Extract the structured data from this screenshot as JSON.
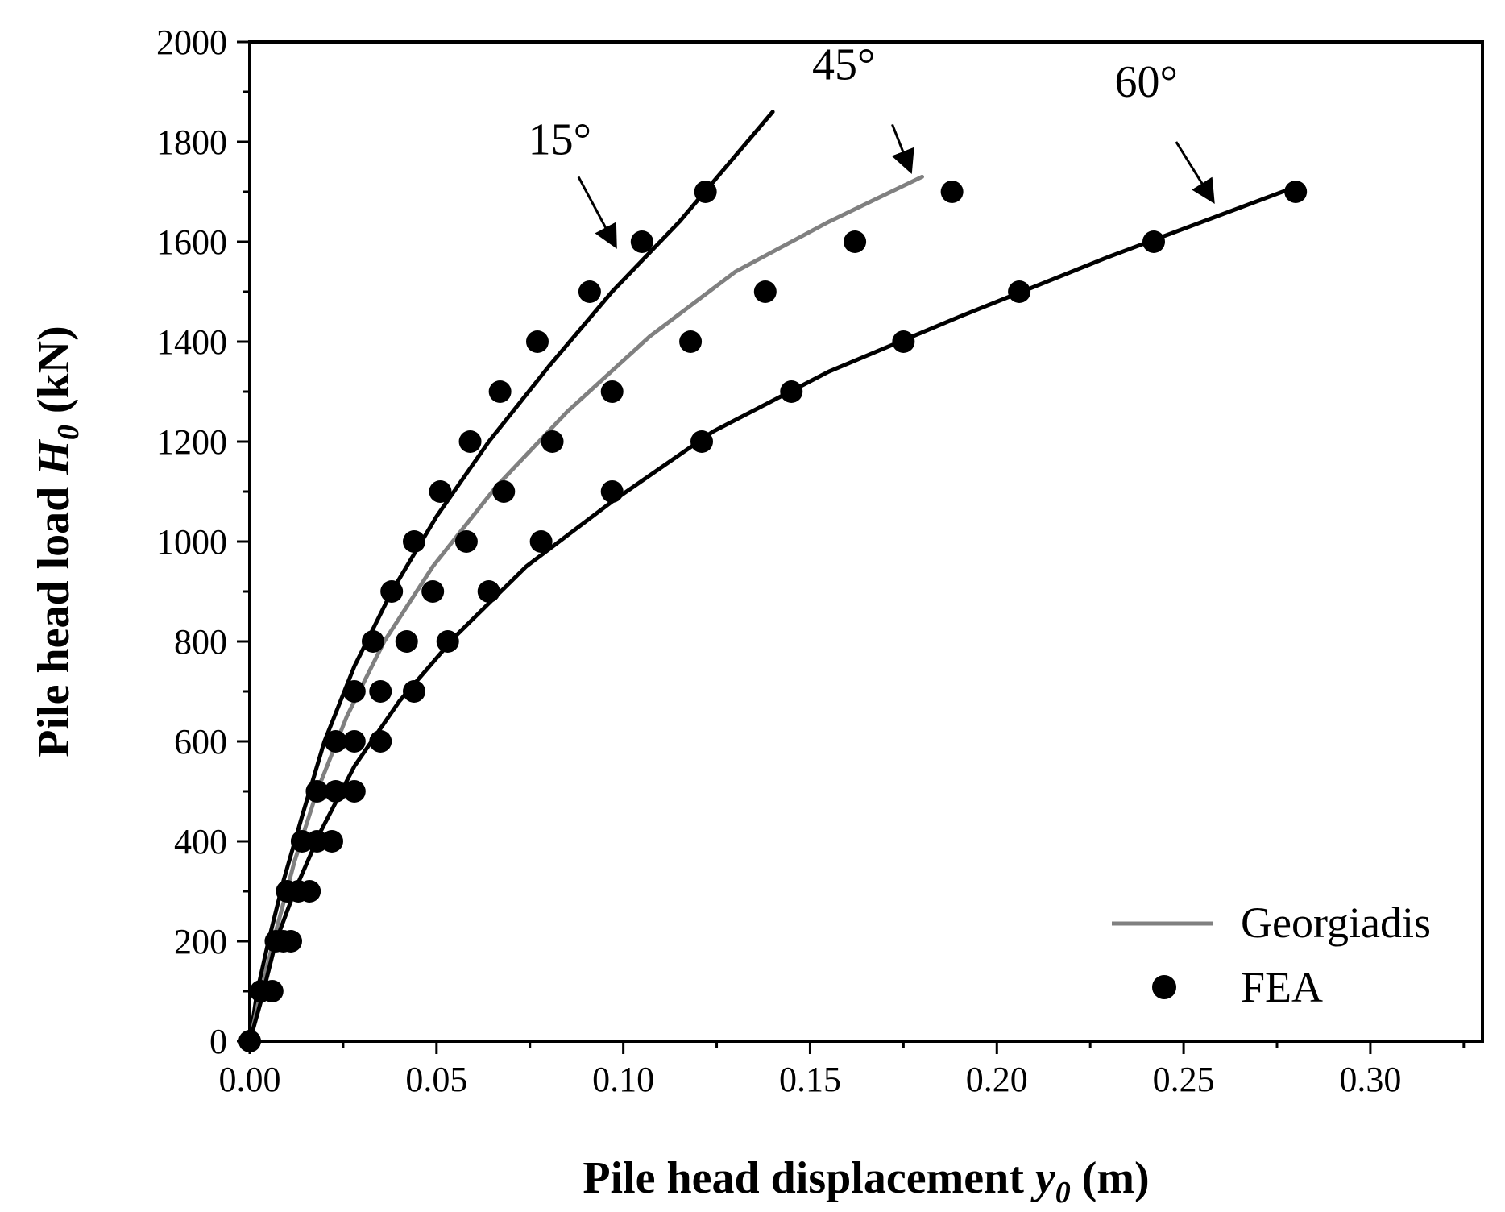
{
  "chart_data": {
    "type": "scatter",
    "title": "",
    "xlabel": {
      "main": "Pile head displacement ",
      "var": "y",
      "sub": "0",
      "unit": " (m)"
    },
    "ylabel": {
      "main": "Pile head load ",
      "var": "H",
      "sub": "0",
      "unit": " (kN)"
    },
    "xlim": [
      0,
      0.33
    ],
    "ylim": [
      0,
      2000
    ],
    "xticks": [
      0.0,
      0.05,
      0.1,
      0.15,
      0.2,
      0.25,
      0.3
    ],
    "xtick_labels": [
      "0.00",
      "0.05",
      "0.10",
      "0.15",
      "0.20",
      "0.25",
      "0.30"
    ],
    "yticks": [
      0,
      200,
      400,
      600,
      800,
      1000,
      1200,
      1400,
      1600,
      1800,
      2000
    ],
    "ytick_labels": [
      "0",
      "200",
      "400",
      "600",
      "800",
      "1000",
      "1200",
      "1400",
      "1600",
      "1800",
      "2000"
    ],
    "legend": {
      "position": "bottom-right",
      "entries": [
        {
          "label": "Georgiadis",
          "kind": "line",
          "color": "#808080"
        },
        {
          "label": "FEA",
          "kind": "marker",
          "color": "#000000"
        }
      ]
    },
    "series": [
      {
        "name": "Georgiadis 15°",
        "kind": "line",
        "color": "#000000",
        "x": [
          0,
          0.002,
          0.005,
          0.009,
          0.014,
          0.02,
          0.028,
          0.038,
          0.05,
          0.064,
          0.08,
          0.097,
          0.115,
          0.14
        ],
        "y": [
          0,
          100,
          200,
          320,
          450,
          600,
          750,
          900,
          1050,
          1200,
          1350,
          1500,
          1640,
          1860
        ]
      },
      {
        "name": "Georgiadis 45°",
        "kind": "line",
        "color": "#808080",
        "x": [
          0,
          0.003,
          0.007,
          0.012,
          0.018,
          0.026,
          0.036,
          0.049,
          0.066,
          0.085,
          0.107,
          0.13,
          0.155,
          0.18
        ],
        "y": [
          0,
          100,
          220,
          360,
          500,
          650,
          800,
          950,
          1110,
          1260,
          1410,
          1540,
          1640,
          1730
        ]
      },
      {
        "name": "Georgiadis 60°",
        "kind": "line",
        "color": "#000000",
        "x": [
          0,
          0.003,
          0.007,
          0.012,
          0.019,
          0.028,
          0.04,
          0.055,
          0.074,
          0.097,
          0.124,
          0.155,
          0.19,
          0.23,
          0.28
        ],
        "y": [
          0,
          80,
          200,
          300,
          420,
          550,
          680,
          810,
          950,
          1080,
          1220,
          1340,
          1450,
          1570,
          1710
        ]
      },
      {
        "name": "FEA 15°",
        "kind": "scatter",
        "color": "#000000",
        "x": [
          0.0,
          0.003,
          0.007,
          0.01,
          0.014,
          0.018,
          0.023,
          0.028,
          0.033,
          0.038,
          0.044,
          0.051,
          0.059,
          0.067,
          0.077,
          0.091,
          0.105,
          0.122
        ],
        "y": [
          0,
          100,
          200,
          300,
          400,
          500,
          600,
          700,
          800,
          900,
          1000,
          1100,
          1200,
          1300,
          1400,
          1500,
          1600,
          1700
        ]
      },
      {
        "name": "FEA 45°",
        "kind": "scatter",
        "color": "#000000",
        "x": [
          0.006,
          0.009,
          0.013,
          0.018,
          0.023,
          0.028,
          0.035,
          0.042,
          0.049,
          0.058,
          0.068,
          0.081,
          0.097,
          0.118,
          0.138,
          0.162,
          0.188
        ],
        "y": [
          100,
          200,
          300,
          400,
          500,
          600,
          700,
          800,
          900,
          1000,
          1100,
          1200,
          1300,
          1400,
          1500,
          1600,
          1700
        ]
      },
      {
        "name": "FEA 60°",
        "kind": "scatter",
        "color": "#000000",
        "x": [
          0.011,
          0.016,
          0.022,
          0.028,
          0.035,
          0.044,
          0.053,
          0.064,
          0.078,
          0.097,
          0.121,
          0.145,
          0.175,
          0.206,
          0.242,
          0.28
        ],
        "y": [
          200,
          300,
          400,
          500,
          600,
          700,
          800,
          900,
          1000,
          1100,
          1200,
          1300,
          1400,
          1500,
          1600,
          1700
        ]
      }
    ],
    "annotations": [
      {
        "text": "15°",
        "text_at": [
          0.083,
          1775
        ],
        "arrow_from": [
          0.088,
          1730
        ],
        "arrow_to": [
          0.098,
          1590
        ]
      },
      {
        "text": "45°",
        "text_at": [
          0.159,
          1925
        ],
        "arrow_from": [
          0.172,
          1835
        ],
        "arrow_to": [
          0.177,
          1740
        ]
      },
      {
        "text": "60°",
        "text_at": [
          0.24,
          1890
        ],
        "arrow_from": [
          0.248,
          1800
        ],
        "arrow_to": [
          0.258,
          1680
        ]
      }
    ]
  }
}
